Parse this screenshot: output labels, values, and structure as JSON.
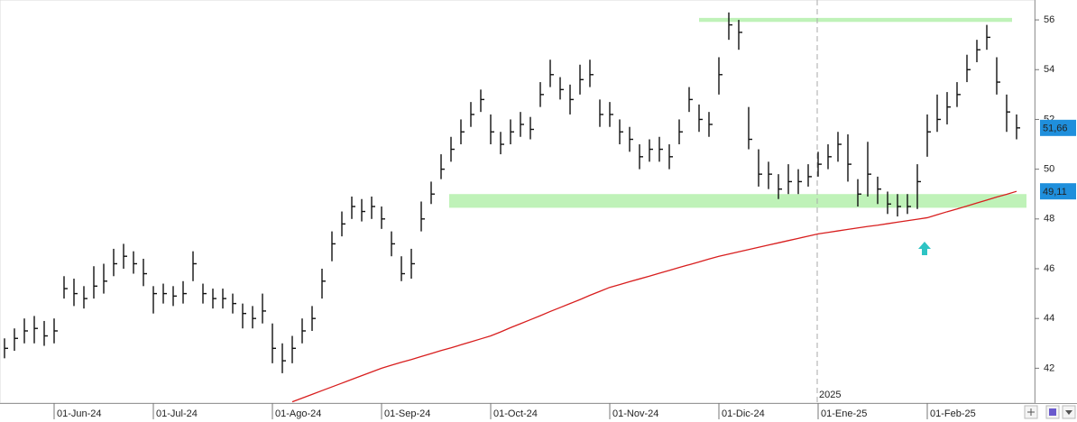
{
  "chart_data": {
    "type": "ohlc",
    "categories": [
      null,
      null,
      null,
      null,
      null,
      "01-Jun-24",
      null,
      null,
      null,
      null,
      null,
      null,
      null,
      null,
      null,
      "01-Jul-24",
      null,
      null,
      null,
      null,
      null,
      null,
      null,
      null,
      null,
      null,
      null,
      "01-Ago-24",
      null,
      null,
      null,
      null,
      null,
      null,
      null,
      null,
      null,
      null,
      "01-Sep-24",
      null,
      null,
      null,
      null,
      null,
      null,
      null,
      null,
      null,
      null,
      "01-Oct-24",
      null,
      null,
      null,
      null,
      null,
      null,
      null,
      null,
      null,
      null,
      null,
      "01-Nov-24",
      null,
      null,
      null,
      null,
      null,
      null,
      null,
      null,
      null,
      null,
      "01-Dic-24",
      null,
      null,
      null,
      null,
      null,
      null,
      null,
      null,
      null,
      "01-Ene-25",
      null,
      null,
      null,
      null,
      null,
      null,
      null,
      null,
      null,
      null,
      "01-Feb-25",
      null,
      null,
      null,
      null,
      null,
      null,
      null,
      null,
      null
    ],
    "bars": [
      [
        42.4,
        43.2,
        42.8
      ],
      [
        42.7,
        43.6,
        43.2
      ],
      [
        43.0,
        44.0,
        43.5
      ],
      [
        43.0,
        44.1,
        43.6
      ],
      [
        42.9,
        43.9,
        43.3
      ],
      [
        43.0,
        44.0,
        43.5
      ],
      [
        44.8,
        45.7,
        45.2
      ],
      [
        44.5,
        45.6,
        45.0
      ],
      [
        44.4,
        45.3,
        44.8
      ],
      [
        44.8,
        46.1,
        45.3
      ],
      [
        45.0,
        46.2,
        45.5
      ],
      [
        45.7,
        46.8,
        46.2
      ],
      [
        46.0,
        47.0,
        46.5
      ],
      [
        45.8,
        46.7,
        46.2
      ],
      [
        45.3,
        46.4,
        45.8
      ],
      [
        44.2,
        45.3,
        45.0
      ],
      [
        44.6,
        45.4,
        45.0
      ],
      [
        44.5,
        45.3,
        44.9
      ],
      [
        44.6,
        45.5,
        45.0
      ],
      [
        45.5,
        46.7,
        46.2
      ],
      [
        44.6,
        45.4,
        45.0
      ],
      [
        44.4,
        45.2,
        44.8
      ],
      [
        44.4,
        45.2,
        44.8
      ],
      [
        44.2,
        45.0,
        44.6
      ],
      [
        43.6,
        44.6,
        44.2
      ],
      [
        43.6,
        44.5,
        44.0
      ],
      [
        43.8,
        45.0,
        44.3
      ],
      [
        42.2,
        43.8,
        42.8
      ],
      [
        41.8,
        43.0,
        42.3
      ],
      [
        42.2,
        43.3,
        42.8
      ],
      [
        43.0,
        44.0,
        43.5
      ],
      [
        43.5,
        44.5,
        44.0
      ],
      [
        44.8,
        46.0,
        45.5
      ],
      [
        46.3,
        47.5,
        47.0
      ],
      [
        47.3,
        48.3,
        47.8
      ],
      [
        48.0,
        48.9,
        48.5
      ],
      [
        47.9,
        48.8,
        48.3
      ],
      [
        48.0,
        48.9,
        48.5
      ],
      [
        47.6,
        48.5,
        48.0
      ],
      [
        46.5,
        47.5,
        47.0
      ],
      [
        45.5,
        46.5,
        45.8
      ],
      [
        45.6,
        46.8,
        46.2
      ],
      [
        47.5,
        48.7,
        48.0
      ],
      [
        48.6,
        49.5,
        49.0
      ],
      [
        49.6,
        50.6,
        50.0
      ],
      [
        50.3,
        51.3,
        50.8
      ],
      [
        51.0,
        52.0,
        51.5
      ],
      [
        51.7,
        52.7,
        52.2
      ],
      [
        52.3,
        53.2,
        52.8
      ],
      [
        51.0,
        52.2,
        51.5
      ],
      [
        50.6,
        51.5,
        51.0
      ],
      [
        51.0,
        52.0,
        51.5
      ],
      [
        51.3,
        52.3,
        51.8
      ],
      [
        51.2,
        52.1,
        51.6
      ],
      [
        52.5,
        53.5,
        53.0
      ],
      [
        53.3,
        54.4,
        53.8
      ],
      [
        52.8,
        53.7,
        53.2
      ],
      [
        52.2,
        53.4,
        52.8
      ],
      [
        53.0,
        54.2,
        53.6
      ],
      [
        53.3,
        54.4,
        53.8
      ],
      [
        51.7,
        52.8,
        52.2
      ],
      [
        51.7,
        52.7,
        52.2
      ],
      [
        51.0,
        52.0,
        51.5
      ],
      [
        50.7,
        51.7,
        51.2
      ],
      [
        50.0,
        51.0,
        50.5
      ],
      [
        50.3,
        51.2,
        50.8
      ],
      [
        50.3,
        51.3,
        50.8
      ],
      [
        50.0,
        51.0,
        50.5
      ],
      [
        51.0,
        52.0,
        51.5
      ],
      [
        52.3,
        53.3,
        52.8
      ],
      [
        51.5,
        52.6,
        52.0
      ],
      [
        51.3,
        52.3,
        51.8
      ],
      [
        53.0,
        54.5,
        53.8
      ],
      [
        55.2,
        56.3,
        55.8
      ],
      [
        54.8,
        56.0,
        55.5
      ],
      [
        50.8,
        52.5,
        51.2
      ],
      [
        49.3,
        50.8,
        49.8
      ],
      [
        49.2,
        50.3,
        49.8
      ],
      [
        48.8,
        49.8,
        49.2
      ],
      [
        49.0,
        50.2,
        49.5
      ],
      [
        49.0,
        50.0,
        49.5
      ],
      [
        49.3,
        50.2,
        49.7
      ],
      [
        49.7,
        50.7,
        50.2
      ],
      [
        50.0,
        51.0,
        50.5
      ],
      [
        50.3,
        51.5,
        51.0
      ],
      [
        49.5,
        51.4,
        50.2
      ],
      [
        48.5,
        49.6,
        49.0
      ],
      [
        48.9,
        51.1,
        49.8
      ],
      [
        48.6,
        49.7,
        49.2
      ],
      [
        48.2,
        49.1,
        48.6
      ],
      [
        48.1,
        49.0,
        48.5
      ],
      [
        48.2,
        49.0,
        48.5
      ],
      [
        48.4,
        50.2,
        49.5
      ],
      [
        50.5,
        52.2,
        51.5
      ],
      [
        51.5,
        53.0,
        52.0
      ],
      [
        51.8,
        53.1,
        52.5
      ],
      [
        52.5,
        53.5,
        53.0
      ],
      [
        53.5,
        54.6,
        54.0
      ],
      [
        54.3,
        55.2,
        54.8
      ],
      [
        54.8,
        55.8,
        55.3
      ],
      [
        53.0,
        54.5,
        53.5
      ],
      [
        51.5,
        53.0,
        52.3
      ],
      [
        51.2,
        52.2,
        51.66
      ]
    ],
    "bar_color": "#111111",
    "ma": [
      null,
      null,
      null,
      null,
      null,
      null,
      null,
      null,
      null,
      null,
      null,
      null,
      null,
      null,
      null,
      null,
      null,
      null,
      null,
      null,
      null,
      null,
      null,
      null,
      null,
      null,
      null,
      null,
      null,
      40.65,
      40.8,
      40.95,
      41.1,
      41.25,
      41.4,
      41.55,
      41.7,
      41.85,
      42.0,
      42.12,
      42.24,
      42.35,
      42.47,
      42.59,
      42.71,
      42.82,
      42.94,
      43.06,
      43.18,
      43.3,
      43.46,
      43.63,
      43.79,
      43.95,
      44.11,
      44.28,
      44.44,
      44.6,
      44.76,
      44.93,
      45.09,
      45.25,
      45.36,
      45.48,
      45.59,
      45.7,
      45.82,
      45.93,
      46.05,
      46.16,
      46.27,
      46.39,
      46.5,
      46.59,
      46.68,
      46.77,
      46.86,
      46.95,
      47.04,
      47.13,
      47.22,
      47.31,
      47.4,
      47.46,
      47.52,
      47.58,
      47.64,
      47.7,
      47.75,
      47.81,
      47.87,
      47.93,
      47.99,
      48.05,
      48.17,
      48.29,
      48.4,
      48.52,
      48.64,
      48.76,
      48.88,
      48.99,
      49.11
    ],
    "ma_color": "#d81e1e",
    "bands": [
      [
        48.45,
        49.0
      ],
      [
        55.92,
        56.08
      ]
    ],
    "band_color": "#bff2b8",
    "ylim": [
      40.6,
      56.8
    ],
    "yticks": [
      42,
      44,
      46,
      48,
      50,
      52,
      54,
      56
    ],
    "year_marker": "2025",
    "last_price": {
      "value": 51.66,
      "label": "51,66"
    },
    "ma_last": {
      "value": 49.11,
      "label": "49,11"
    },
    "label_color": "#1f8fdc"
  }
}
